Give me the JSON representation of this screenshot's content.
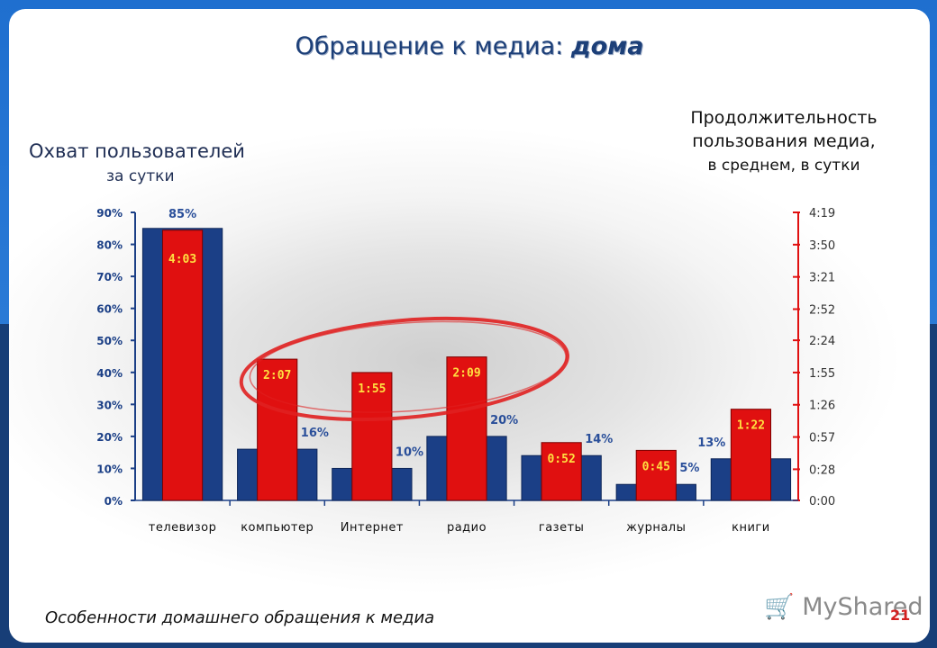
{
  "slide": {
    "title_main": "Обращение к медиа:",
    "title_em": "дома",
    "left_label": "Охват пользователей",
    "left_sub": "за сутки",
    "right_label_l1": "Продолжительность",
    "right_label_l2": "пользования медиа,",
    "right_sub": "в среднем, в сутки",
    "footer": "Особенности домашнего обращения к медиа",
    "page_number": "21",
    "watermark": "MyShared",
    "watermark_icon": "cart-icon"
  },
  "chart_data": {
    "type": "bar",
    "categories": [
      "телевизор",
      "компьютер",
      "Интернет",
      "радио",
      "газеты",
      "журналы",
      "книги"
    ],
    "series": [
      {
        "values": [
          85,
          16,
          10,
          20,
          14,
          5,
          13
        ],
        "value_labels": [
          "85%",
          "16%",
          "10%",
          "20%",
          "14%",
          "5%",
          "13%"
        ],
        "axis": "left",
        "color": "#1b3f86"
      },
      {
        "values_minutes": [
          243,
          127,
          115,
          129,
          52,
          45,
          82
        ],
        "value_labels": [
          "4:03",
          "2:07",
          "1:55",
          "2:09",
          "0:52",
          "0:45",
          "1:22"
        ],
        "axis": "right",
        "color": "#e01010"
      }
    ],
    "y_left": {
      "ylim": [
        0,
        90
      ],
      "ticks": [
        0,
        10,
        20,
        30,
        40,
        50,
        60,
        70,
        80,
        90
      ],
      "tick_labels": [
        "0%",
        "10%",
        "20%",
        "30%",
        "40%",
        "50%",
        "60%",
        "70%",
        "80%",
        "90%"
      ]
    },
    "y_right": {
      "ylim_minutes": [
        0,
        259
      ],
      "ticks_minutes": [
        0,
        28,
        57,
        86,
        115,
        144,
        172,
        201,
        230,
        259
      ],
      "tick_labels": [
        "0:00",
        "0:28",
        "0:57",
        "1:26",
        "1:55",
        "2:24",
        "2:52",
        "3:21",
        "3:50",
        "4:19"
      ]
    },
    "highlight_categories": [
      "компьютер",
      "Интернет",
      "радио"
    ],
    "highlight_color": "#e02020",
    "grid": false
  }
}
